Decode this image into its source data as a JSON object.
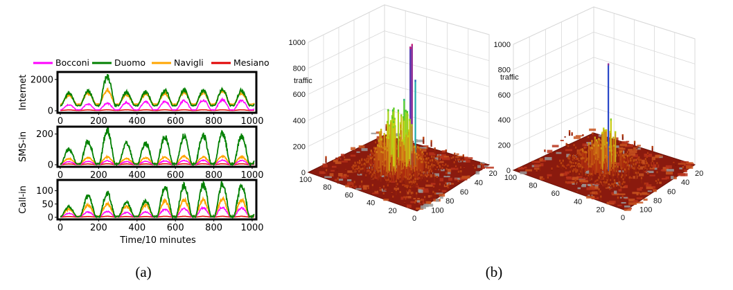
{
  "chart_data": [
    {
      "type": "line",
      "caption": "(a)",
      "xlabel": "Time/10 minutes",
      "xticks": [
        0,
        200,
        400,
        600,
        800,
        1000
      ],
      "xlim": [
        0,
        1000
      ],
      "legend": {
        "placement": "top",
        "entries": [
          {
            "name": "Bocconi",
            "color": "#ff00ff"
          },
          {
            "name": "Duomo",
            "color": "#008000"
          },
          {
            "name": "Navigli",
            "color": "#ffa500"
          },
          {
            "name": "Mesiano",
            "color": "#e00000"
          }
        ]
      },
      "panels": [
        {
          "ylabel": "Internet",
          "ylim": [
            0,
            2300
          ],
          "yticks": [
            0,
            2000
          ],
          "series": [
            {
              "name": "Duomo",
              "peaks": [
                1100,
                1250,
                2200,
                1200,
                1200,
                1300,
                1300,
                1300,
                1350,
                1300
              ],
              "base": 330
            },
            {
              "name": "Navigli",
              "peaks": [
                1000,
                1150,
                1300,
                1000,
                1050,
                1100,
                1200,
                1150,
                1300,
                1100
              ],
              "base": 420
            },
            {
              "name": "Bocconi",
              "peaks": [
                380,
                420,
                480,
                520,
                560,
                600,
                640,
                680,
                700,
                660
              ],
              "base": 60
            },
            {
              "name": "Mesiano",
              "peaks": [
                50,
                50,
                60,
                60,
                60,
                60,
                60,
                60,
                60,
                60
              ],
              "base": 20
            }
          ]
        },
        {
          "ylabel": "SMS-in",
          "ylim": [
            0,
            230
          ],
          "yticks": [
            0,
            200
          ],
          "series": [
            {
              "name": "Duomo",
              "peaks": [
                100,
                150,
                225,
                140,
                140,
                180,
                190,
                190,
                200,
                190
              ],
              "base": 5
            },
            {
              "name": "Navigli",
              "peaks": [
                40,
                45,
                50,
                40,
                45,
                50,
                55,
                50,
                55,
                50
              ],
              "base": 8
            },
            {
              "name": "Bocconi",
              "peaks": [
                20,
                22,
                25,
                20,
                22,
                25,
                28,
                28,
                30,
                28
              ],
              "base": 3
            },
            {
              "name": "Mesiano",
              "peaks": [
                5,
                5,
                6,
                5,
                5,
                6,
                6,
                6,
                6,
                6
              ],
              "base": 1
            }
          ]
        },
        {
          "ylabel": "Call-in",
          "ylim": [
            0,
            130
          ],
          "yticks": [
            0,
            50,
            100
          ],
          "series": [
            {
              "name": "Duomo",
              "peaks": [
                40,
                80,
                90,
                55,
                60,
                110,
                120,
                120,
                125,
                120
              ],
              "base": 3
            },
            {
              "name": "Navigli",
              "peaks": [
                30,
                45,
                50,
                40,
                45,
                60,
                65,
                65,
                68,
                65
              ],
              "base": 4
            },
            {
              "name": "Bocconi",
              "peaks": [
                15,
                20,
                22,
                18,
                20,
                30,
                33,
                35,
                38,
                35
              ],
              "base": 2
            },
            {
              "name": "Mesiano",
              "peaks": [
                3,
                3,
                4,
                3,
                3,
                4,
                4,
                4,
                4,
                4
              ],
              "base": 1
            }
          ]
        }
      ]
    },
    {
      "type": "surface3d",
      "caption": "(b)",
      "zlabel": "traffic",
      "zticks": [
        0,
        200,
        400,
        600,
        800,
        1000
      ],
      "axis_ticks_left": [
        20,
        40,
        60,
        80,
        100
      ],
      "axis_ticks_right": [
        20,
        40,
        60,
        80,
        100
      ],
      "surfaces": [
        {
          "peak": 1000,
          "level": "high"
        },
        {
          "peak": 850,
          "level": "low"
        }
      ]
    }
  ]
}
